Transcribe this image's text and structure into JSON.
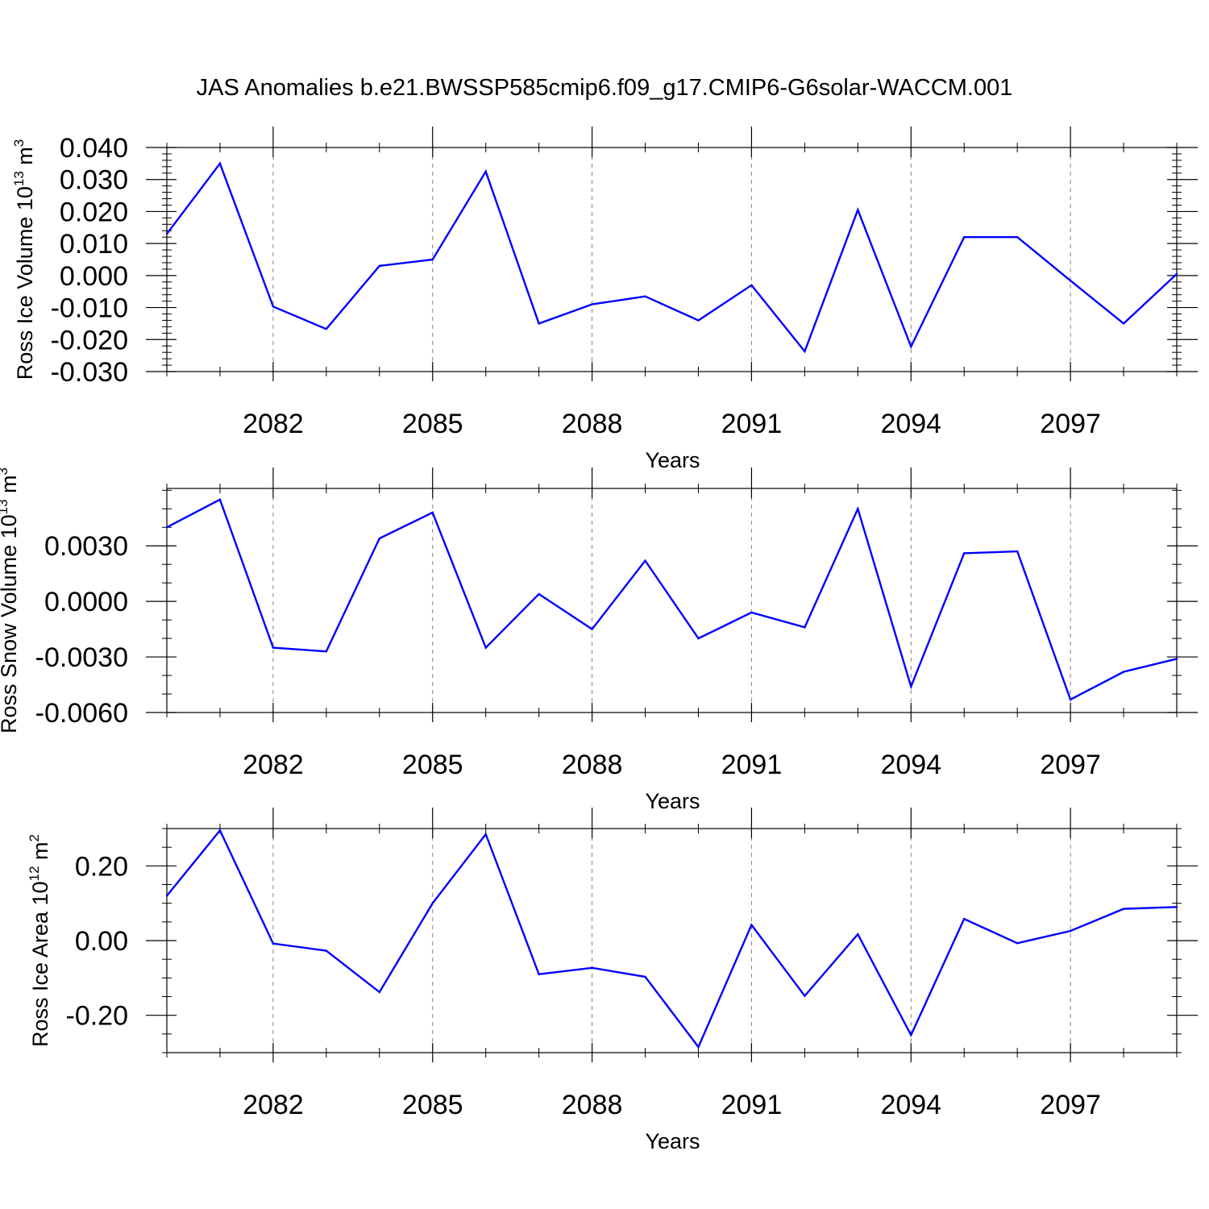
{
  "figure_title": "JAS Anomalies b.e21.BWSSP585cmip6.f09_g17.CMIP6-G6solar-WACCM.001",
  "colors": {
    "line": "#0000ff",
    "axis": "#000000",
    "grid": "#808080"
  },
  "chart_data": [
    {
      "type": "line",
      "xlabel": "Years",
      "ylabel": {
        "text": "Ross Ice Volume 10",
        "exponent": "13",
        "unit": " m",
        "unit_exponent": "3"
      },
      "x": [
        2080,
        2081,
        2082,
        2083,
        2084,
        2085,
        2086,
        2087,
        2088,
        2089,
        2090,
        2091,
        2092,
        2093,
        2094,
        2095,
        2096,
        2097,
        2098,
        2099
      ],
      "series": [
        {
          "values": [
            0.013,
            0.035,
            -0.0097,
            -0.0167,
            0.003,
            0.005,
            0.0325,
            -0.015,
            -0.009,
            -0.0065,
            -0.014,
            -0.003,
            -0.0237,
            0.0205,
            -0.0222,
            0.012,
            0.012,
            -0.0016,
            -0.015,
            0.0005
          ]
        }
      ],
      "xlim": [
        2080,
        2099
      ],
      "ylim": [
        -0.03,
        0.04
      ],
      "xticks": [
        2082,
        2085,
        2088,
        2091,
        2094,
        2097
      ],
      "xtick_labels": [
        "2082",
        "2085",
        "2088",
        "2091",
        "2094",
        "2097"
      ],
      "yticks": [
        -0.03,
        -0.02,
        -0.01,
        0.0,
        0.01,
        0.02,
        0.03,
        0.04
      ],
      "ytick_labels": [
        "-0.030",
        "-0.020",
        "-0.010",
        "0.000",
        "0.010",
        "0.020",
        "0.030",
        "0.040"
      ],
      "yminor_step": 0.002,
      "xgrid": "dashed vertical at major ticks"
    },
    {
      "type": "line",
      "xlabel": "Years",
      "ylabel": {
        "text": "Ross Snow Volume 10",
        "exponent": "13",
        "unit": " m",
        "unit_exponent": "3"
      },
      "x": [
        2080,
        2081,
        2082,
        2083,
        2084,
        2085,
        2086,
        2087,
        2088,
        2089,
        2090,
        2091,
        2092,
        2093,
        2094,
        2095,
        2096,
        2097,
        2098,
        2099
      ],
      "series": [
        {
          "values": [
            0.004,
            0.0055,
            -0.0025,
            -0.0027,
            0.0034,
            0.0048,
            -0.0025,
            0.0004,
            -0.0015,
            0.0022,
            -0.002,
            -0.0006,
            -0.0014,
            0.005,
            -0.0046,
            0.0026,
            0.0027,
            -0.0053,
            -0.0038,
            -0.0031
          ]
        }
      ],
      "xlim": [
        2080,
        2099
      ],
      "ylim": [
        -0.006,
        0.0061
      ],
      "xticks": [
        2082,
        2085,
        2088,
        2091,
        2094,
        2097
      ],
      "xtick_labels": [
        "2082",
        "2085",
        "2088",
        "2091",
        "2094",
        "2097"
      ],
      "yticks": [
        -0.006,
        -0.003,
        0.0,
        0.003
      ],
      "ytick_labels": [
        "-0.0060",
        "-0.0030",
        "0.0000",
        "0.0030"
      ],
      "yminor_step": 0.001,
      "xgrid": "dashed vertical at major ticks"
    },
    {
      "type": "line",
      "xlabel": "Years",
      "ylabel": {
        "text": "Ross Ice Area 10",
        "exponent": "12",
        "unit": " m",
        "unit_exponent": "2"
      },
      "x": [
        2080,
        2081,
        2082,
        2083,
        2084,
        2085,
        2086,
        2087,
        2088,
        2089,
        2090,
        2091,
        2092,
        2093,
        2094,
        2095,
        2096,
        2097,
        2098,
        2099
      ],
      "series": [
        {
          "values": [
            0.12,
            0.295,
            -0.008,
            -0.027,
            -0.138,
            0.1,
            0.285,
            -0.09,
            -0.073,
            -0.097,
            -0.285,
            0.042,
            -0.148,
            0.017,
            -0.253,
            0.058,
            -0.007,
            0.026,
            0.085,
            0.09
          ]
        }
      ],
      "xlim": [
        2080,
        2099
      ],
      "ylim": [
        -0.3,
        0.3
      ],
      "xticks": [
        2082,
        2085,
        2088,
        2091,
        2094,
        2097
      ],
      "xtick_labels": [
        "2082",
        "2085",
        "2088",
        "2091",
        "2094",
        "2097"
      ],
      "yticks": [
        -0.2,
        0.0,
        0.2
      ],
      "ytick_labels": [
        "-0.20",
        "0.00",
        "0.20"
      ],
      "yminor_step": 0.05,
      "xgrid": "dashed vertical at major ticks"
    }
  ]
}
